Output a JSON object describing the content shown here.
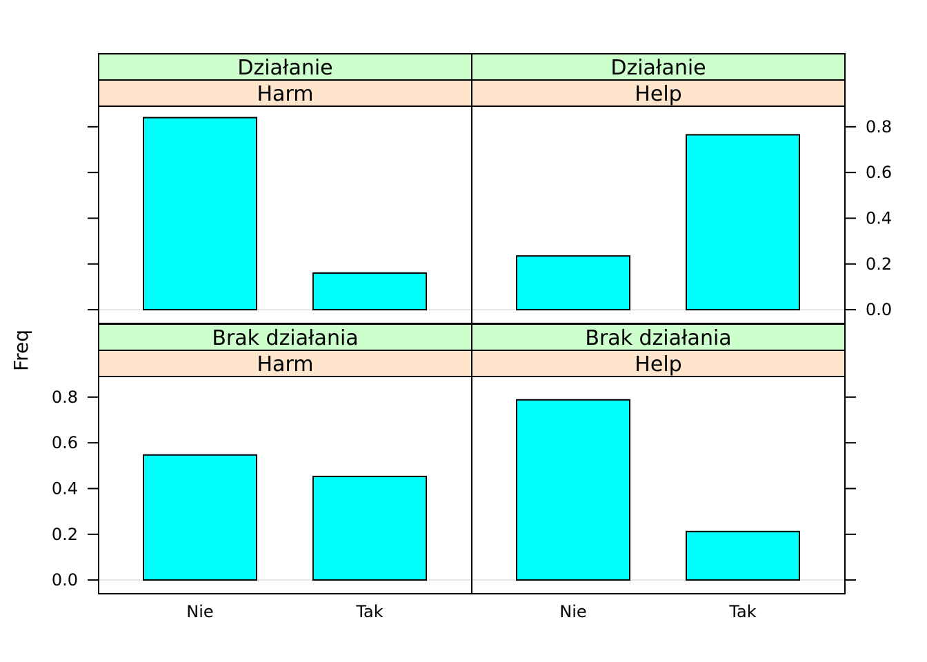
{
  "chart_data": {
    "type": "bar",
    "ylabel": "Freq",
    "xlabel": "",
    "ylim": [
      -0.06,
      0.89
    ],
    "yticks": [
      0.0,
      0.2,
      0.4,
      0.6,
      0.8
    ],
    "ytick_labels": [
      "0.0",
      "0.2",
      "0.4",
      "0.6",
      "0.8"
    ],
    "categories": [
      "Nie",
      "Tak"
    ],
    "bar_color": "#00FFFF",
    "strip_colors": {
      "outer": "#CCFFCC",
      "inner": "#FFE5CC"
    },
    "zero_line_color": "#E6E6E6",
    "layout": "2x2",
    "panels": [
      {
        "outer_strip": "Działanie",
        "inner_strip": "Harm",
        "row": 0,
        "col": 0,
        "values": [
          0.84,
          0.16
        ]
      },
      {
        "outer_strip": "Działanie",
        "inner_strip": "Help",
        "row": 0,
        "col": 1,
        "values": [
          0.235,
          0.765
        ]
      },
      {
        "outer_strip": "Brak działania",
        "inner_strip": "Harm",
        "row": 1,
        "col": 0,
        "values": [
          0.547,
          0.453
        ]
      },
      {
        "outer_strip": "Brak działania",
        "inner_strip": "Help",
        "row": 1,
        "col": 1,
        "values": [
          0.788,
          0.212
        ]
      }
    ]
  }
}
